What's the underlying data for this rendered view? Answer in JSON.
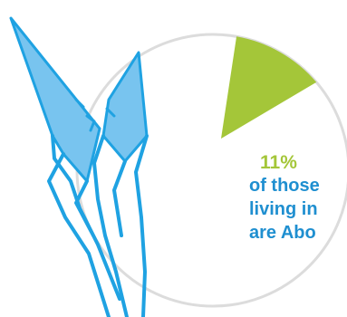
{
  "colors": {
    "highlight": "#a4c639",
    "remainder_stroke": "#dcdcdc",
    "text": "#1f8fd0",
    "feather": "#78c4ef",
    "feather_outline": "#1fa2e2"
  },
  "icon": "feather-icon",
  "chart_data": {
    "type": "pie",
    "slices": [
      {
        "label": "11%",
        "value": 11,
        "highlighted": true
      },
      {
        "label": "",
        "value": 89,
        "highlighted": false
      }
    ],
    "annotation": {
      "percent": "11%",
      "lines": [
        "of those",
        "living in",
        "are Abo"
      ]
    }
  }
}
